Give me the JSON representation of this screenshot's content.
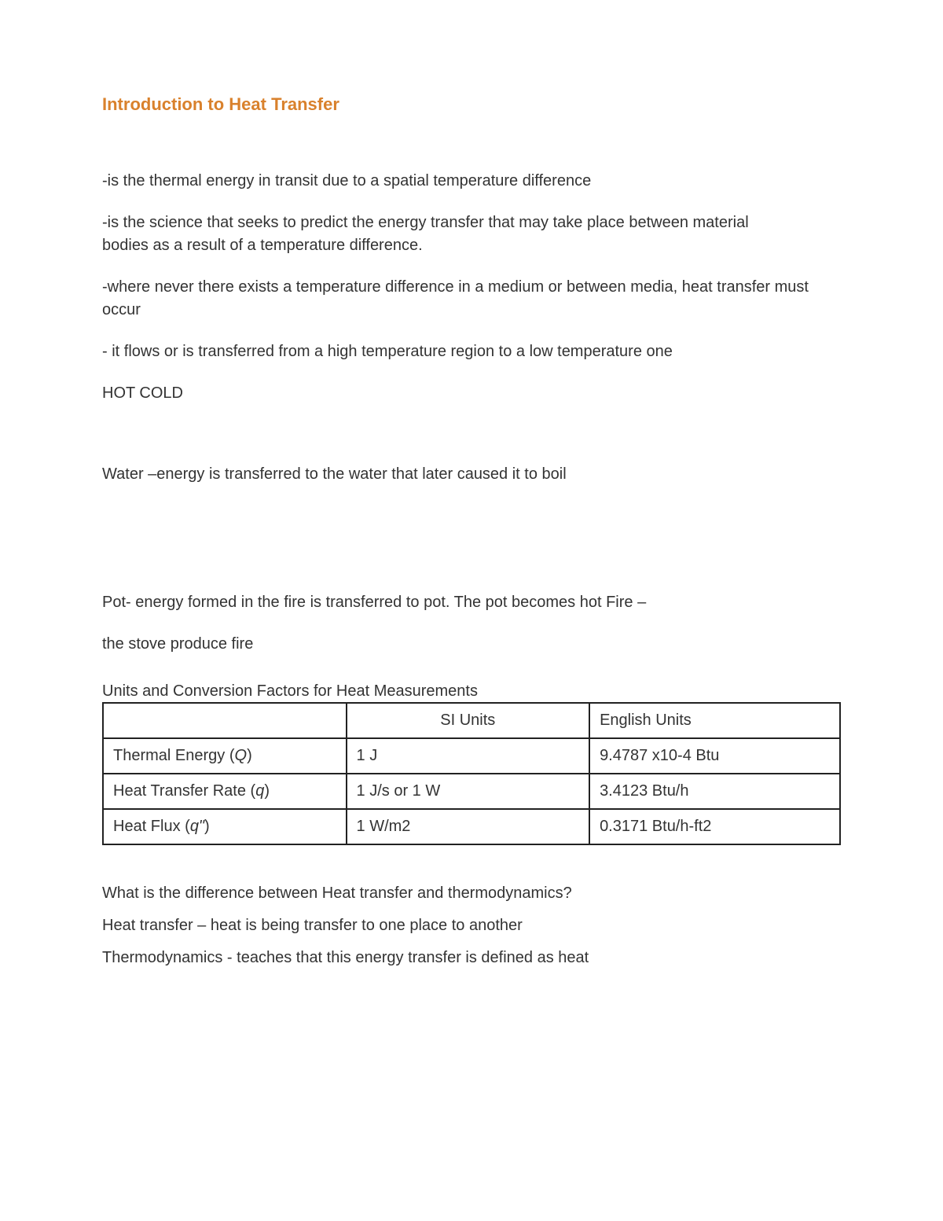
{
  "title": "Introduction to Heat Transfer",
  "paragraphs": {
    "p1": "-is the thermal energy in transit due to a spatial temperature difference",
    "p2a": "-is the science that seeks to predict the energy transfer that may take place between material",
    "p2b": "bodies as a result of a temperature difference.",
    "p3": "-where never there exists a temperature difference in a medium or between media, heat transfer must occur",
    "p4": "- it flows or is transferred from a high temperature region to a low temperature one",
    "p5": "HOT COLD",
    "p6": "Water –energy is transferred to the water that later caused it to boil",
    "p7": " Pot- energy formed in the fire is transferred to pot. The pot becomes hot Fire –",
    "p8": "the stove produce fire"
  },
  "table": {
    "caption": "Units and Conversion Factors for Heat Measurements",
    "headers": {
      "c1": "",
      "c2": "SI Units",
      "c3": "English Units"
    },
    "rows": [
      {
        "label_pre": "Thermal Energy (",
        "sym": "Q",
        "label_post": ")",
        "si": "1 J",
        "en": "9.4787 x10-4 Btu"
      },
      {
        "label_pre": "Heat Transfer Rate (",
        "sym": "q",
        "label_post": ")",
        "si": "1 J/s or 1 W",
        "en": "3.4123 Btu/h"
      },
      {
        "label_pre": "Heat Flux (",
        "sym": "q\"",
        "label_post": ")",
        "si": "1 W/m2",
        "en": "0.3171 Btu/h-ft2"
      }
    ]
  },
  "qa": {
    "q": "What is the difference between Heat transfer and thermodynamics?",
    "a1": "Heat transfer – heat is being transfer to one place to another",
    "a2": "Thermodynamics - teaches that this energy transfer is defined as heat"
  },
  "colors": {
    "title": "#d9812c",
    "text": "#333333",
    "border": "#222222",
    "background": "#ffffff"
  },
  "typography": {
    "title_fontsize": 22,
    "body_fontsize": 20,
    "font_family": "Trebuchet MS"
  }
}
